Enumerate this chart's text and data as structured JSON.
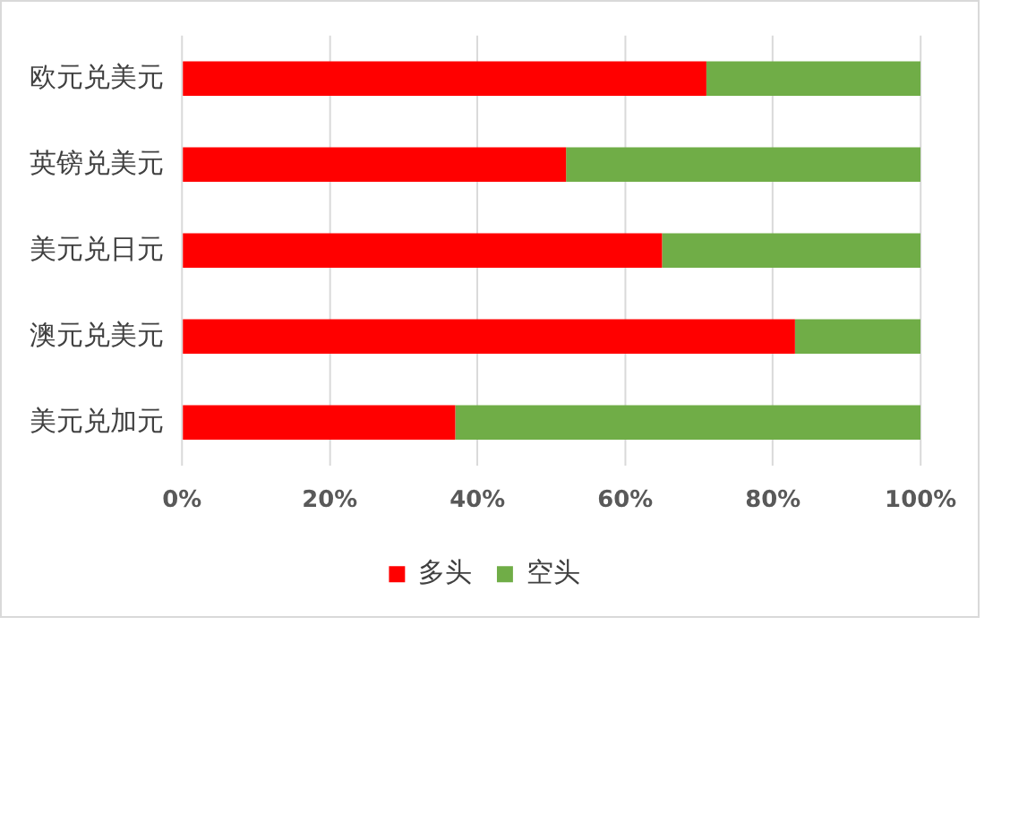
{
  "chart_data": {
    "type": "bar",
    "orientation": "horizontal",
    "stacked": true,
    "categories": [
      "欧元兑美元",
      "英镑兑美元",
      "美元兑日元",
      "澳元兑美元",
      "美元兑加元"
    ],
    "series": [
      {
        "name": "多头",
        "color": "#ff0000",
        "values": [
          71,
          52,
          65,
          83,
          37
        ]
      },
      {
        "name": "空头",
        "color": "#70ad47",
        "values": [
          29,
          48,
          35,
          17,
          63
        ]
      }
    ],
    "xlim": [
      0,
      100
    ],
    "xticks": [
      {
        "value": 0,
        "label": "0%"
      },
      {
        "value": 20,
        "label": "20%"
      },
      {
        "value": 40,
        "label": "40%"
      },
      {
        "value": 60,
        "label": "60%"
      },
      {
        "value": 80,
        "label": "80%"
      },
      {
        "value": 100,
        "label": "100%"
      }
    ],
    "grid": "x",
    "legend": "bottom"
  }
}
